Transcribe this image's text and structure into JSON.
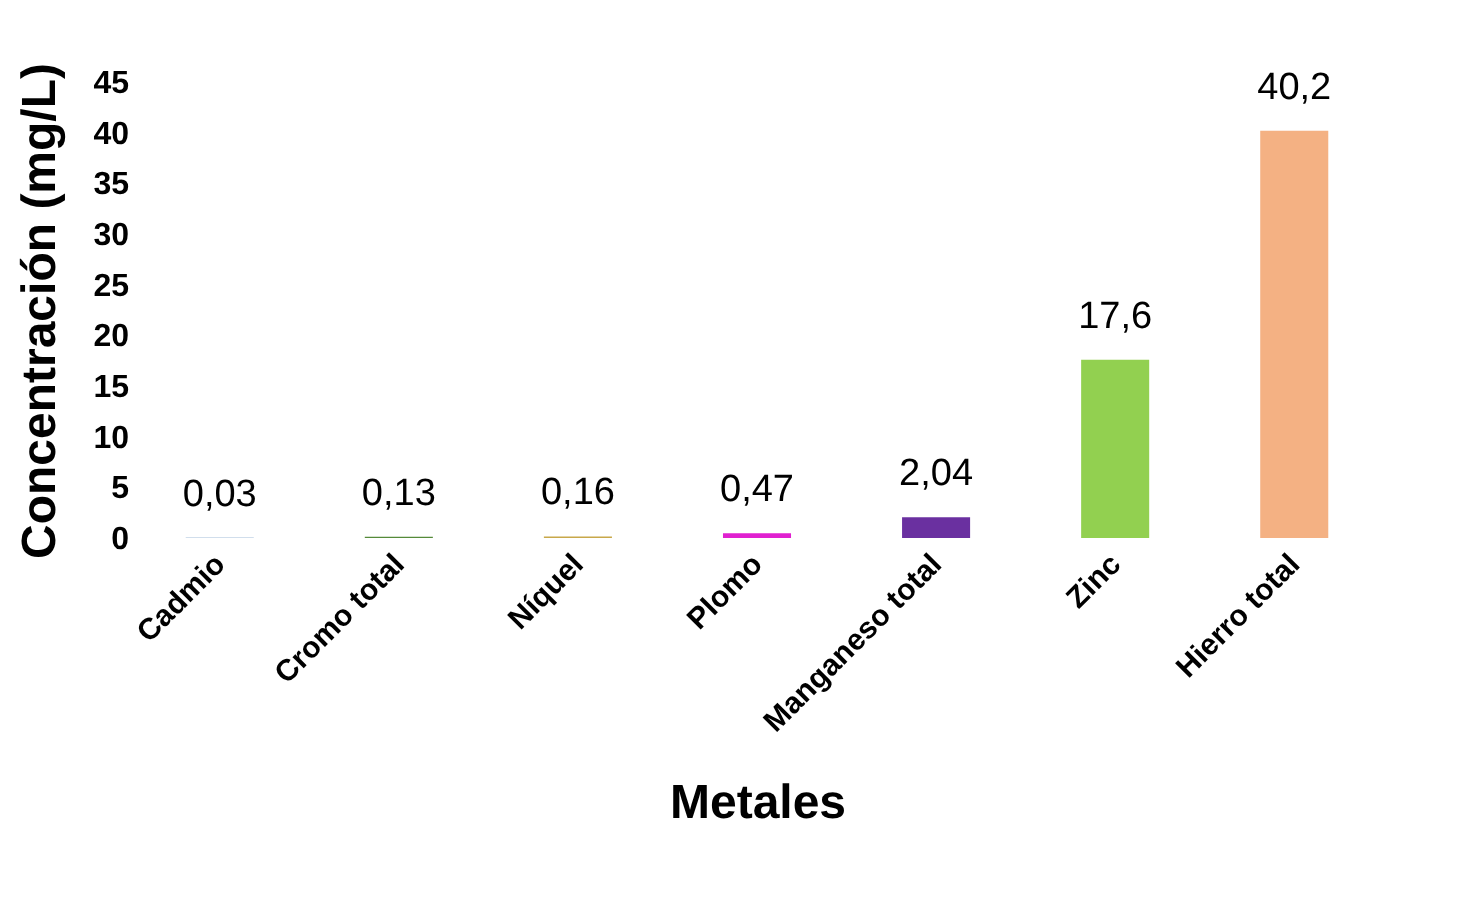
{
  "chart_data": {
    "type": "bar",
    "xlabel": "Metales",
    "ylabel": "Concentración (mg/L)",
    "categories": [
      "Cadmio",
      "Cromo total",
      "Níquel",
      "Plomo",
      "Manganeso  total",
      "Zinc",
      "Hierro total"
    ],
    "values": [
      0.03,
      0.13,
      0.16,
      0.47,
      2.04,
      17.6,
      40.2
    ],
    "value_labels": [
      "0,03",
      "0,13",
      "0,16",
      "0,47",
      "2,04",
      "17,6",
      "40,2"
    ],
    "colors": [
      "#4a7eb4",
      "#558a3a",
      "#c8a84a",
      "#e020d0",
      "#6a30a0",
      "#92d050",
      "#f4b183"
    ],
    "ylim": [
      0,
      45
    ],
    "yticks": [
      0,
      5,
      10,
      15,
      20,
      25,
      30,
      35,
      40,
      45
    ],
    "grid": false
  }
}
